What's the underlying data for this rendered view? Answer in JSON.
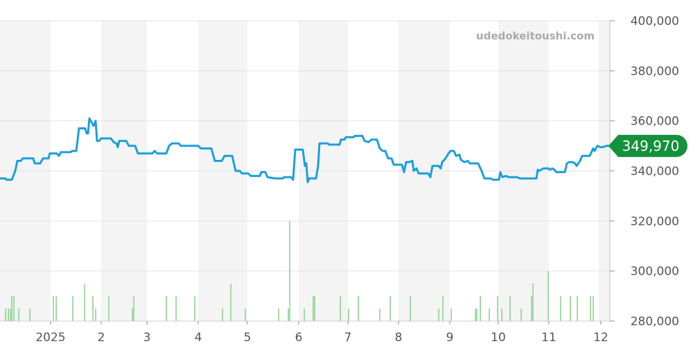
{
  "watermark": "udedokeitoushi.com",
  "colors": {
    "price_line": "#1a9fdb",
    "volume_bar": "#8fd18f",
    "band": "#f4f4f4",
    "grid": "#e2e2e2",
    "badge": "#14913c",
    "axis_text": "#555555"
  },
  "chart_data": {
    "type": "line",
    "ylim": [
      280000,
      400000
    ],
    "y_ticks": [
      "280,000",
      "300,000",
      "320,000",
      "340,000",
      "360,000",
      "380,000",
      "400,000"
    ],
    "x_ticks": [
      "2025",
      "2",
      "3",
      "4",
      "5",
      "6",
      "7",
      "8",
      "9",
      "10",
      "11",
      "12"
    ],
    "last_price_label": "349,970",
    "grid": true,
    "series": [
      {
        "values": [
          [
            0,
            337000
          ],
          [
            8,
            337000
          ],
          [
            9,
            336500
          ],
          [
            17,
            336500
          ],
          [
            22,
            340000
          ],
          [
            25,
            344000
          ],
          [
            30,
            344000
          ],
          [
            33,
            345000
          ],
          [
            48,
            345000
          ],
          [
            50,
            343000
          ],
          [
            58,
            343000
          ],
          [
            62,
            345000
          ],
          [
            70,
            345000
          ],
          [
            72,
            347000
          ],
          [
            82,
            347000
          ],
          [
            85,
            346000
          ],
          [
            88,
            347500
          ],
          [
            102,
            347500
          ],
          [
            104,
            348000
          ],
          [
            110,
            348000
          ],
          [
            114,
            357000
          ],
          [
            123,
            357000
          ],
          [
            125,
            355000
          ],
          [
            127,
            355000
          ],
          [
            129,
            361000
          ],
          [
            133,
            359000
          ],
          [
            135,
            358000
          ],
          [
            138,
            360000
          ],
          [
            140,
            352000
          ],
          [
            143,
            352000
          ],
          [
            146,
            353000
          ],
          [
            160,
            353000
          ],
          [
            164,
            351500
          ],
          [
            168,
            351000
          ],
          [
            170,
            349500
          ],
          [
            172,
            352000
          ],
          [
            182,
            352000
          ],
          [
            186,
            350000
          ],
          [
            195,
            350000
          ],
          [
            199,
            347000
          ],
          [
            220,
            347000
          ],
          [
            223,
            348000
          ],
          [
            227,
            347000
          ],
          [
            240,
            347000
          ],
          [
            244,
            350000
          ],
          [
            248,
            351000
          ],
          [
            258,
            351000
          ],
          [
            261,
            350000
          ],
          [
            286,
            350000
          ],
          [
            290,
            349000
          ],
          [
            305,
            349000
          ],
          [
            310,
            344000
          ],
          [
            320,
            344000
          ],
          [
            324,
            346000
          ],
          [
            335,
            346000
          ],
          [
            340,
            340000
          ],
          [
            346,
            340000
          ],
          [
            349,
            339000
          ],
          [
            358,
            339000
          ],
          [
            362,
            338000
          ],
          [
            375,
            338000
          ],
          [
            377,
            339500
          ],
          [
            383,
            339500
          ],
          [
            386,
            337500
          ],
          [
            397,
            337000
          ],
          [
            408,
            337000
          ],
          [
            410,
            337500
          ],
          [
            420,
            337500
          ],
          [
            423,
            336500
          ],
          [
            426,
            348500
          ],
          [
            437,
            348500
          ],
          [
            440,
            342000
          ],
          [
            442,
            343000
          ],
          [
            444,
            335500
          ],
          [
            446,
            337000
          ],
          [
            456,
            337000
          ],
          [
            459,
            342000
          ],
          [
            461,
            351000
          ],
          [
            473,
            351000
          ],
          [
            475,
            350500
          ],
          [
            490,
            350500
          ],
          [
            492,
            352500
          ],
          [
            497,
            352500
          ],
          [
            499,
            353500
          ],
          [
            510,
            353500
          ],
          [
            512,
            354000
          ],
          [
            523,
            354000
          ],
          [
            526,
            352000
          ],
          [
            532,
            351500
          ],
          [
            536,
            352500
          ],
          [
            544,
            352500
          ],
          [
            548,
            349000
          ],
          [
            552,
            348000
          ],
          [
            556,
            348000
          ],
          [
            560,
            345000
          ],
          [
            565,
            345000
          ],
          [
            568,
            342500
          ],
          [
            580,
            342500
          ],
          [
            583,
            339500
          ],
          [
            586,
            343500
          ],
          [
            590,
            343500
          ],
          [
            595,
            344000
          ],
          [
            597,
            340000
          ],
          [
            601,
            341000
          ],
          [
            604,
            339000
          ],
          [
            618,
            339000
          ],
          [
            621,
            337500
          ],
          [
            624,
            342000
          ],
          [
            633,
            342000
          ],
          [
            636,
            341000
          ],
          [
            638,
            343500
          ],
          [
            643,
            345000
          ],
          [
            646,
            346500
          ],
          [
            650,
            348000
          ],
          [
            655,
            348000
          ],
          [
            658,
            346000
          ],
          [
            663,
            346500
          ],
          [
            665,
            344500
          ],
          [
            670,
            343500
          ],
          [
            675,
            344000
          ],
          [
            678,
            343000
          ],
          [
            690,
            343000
          ],
          [
            695,
            340000
          ],
          [
            699,
            337000
          ],
          [
            708,
            337000
          ],
          [
            711,
            336500
          ],
          [
            720,
            336500
          ],
          [
            722,
            339500
          ],
          [
            725,
            337500
          ],
          [
            730,
            338000
          ],
          [
            734,
            337500
          ],
          [
            740,
            337500
          ],
          [
            746,
            337500
          ],
          [
            750,
            337000
          ],
          [
            760,
            337000
          ],
          [
            770,
            337000
          ],
          [
            774,
            337000
          ],
          [
            776,
            340500
          ],
          [
            778,
            340000
          ],
          [
            784,
            341000
          ],
          [
            791,
            341000
          ],
          [
            794,
            340500
          ],
          [
            797,
            341000
          ],
          [
            800,
            340500
          ],
          [
            803,
            339500
          ],
          [
            815,
            339500
          ],
          [
            818,
            343000
          ],
          [
            821,
            343500
          ],
          [
            826,
            343500
          ],
          [
            830,
            343000
          ],
          [
            832,
            342000
          ],
          [
            837,
            344000
          ],
          [
            840,
            346000
          ],
          [
            851,
            346000
          ],
          [
            856,
            349000
          ],
          [
            858,
            348000
          ],
          [
            862,
            350000
          ],
          [
            866,
            349500
          ],
          [
            870,
            349500
          ],
          [
            875,
            350000
          ],
          [
            880,
            350000
          ]
        ]
      },
      {
        "values": [
          [
            8,
            285000
          ],
          [
            12,
            285000
          ],
          [
            15,
            285000
          ],
          [
            17,
            290000
          ],
          [
            20,
            290000
          ],
          [
            27,
            285000
          ],
          [
            43,
            285000
          ],
          [
            77,
            290000
          ],
          [
            81,
            290000
          ],
          [
            105,
            290000
          ],
          [
            122,
            295000
          ],
          [
            134,
            290000
          ],
          [
            138,
            285000
          ],
          [
            157,
            290000
          ],
          [
            191,
            285000
          ],
          [
            193,
            290000
          ],
          [
            240,
            290000
          ],
          [
            254,
            290000
          ],
          [
            281,
            290000
          ],
          [
            321,
            285000
          ],
          [
            333,
            295000
          ],
          [
            354,
            285000
          ],
          [
            402,
            285000
          ],
          [
            416,
            285000
          ],
          [
            418,
            320000
          ],
          [
            439,
            285000
          ],
          [
            452,
            290000
          ],
          [
            454,
            290000
          ],
          [
            491,
            290000
          ],
          [
            503,
            285000
          ],
          [
            517,
            290000
          ],
          [
            548,
            285000
          ],
          [
            563,
            290000
          ],
          [
            592,
            290000
          ],
          [
            633,
            285000
          ],
          [
            639,
            290000
          ],
          [
            651,
            285000
          ],
          [
            686,
            285000
          ],
          [
            688,
            285000
          ],
          [
            693,
            290000
          ],
          [
            706,
            285000
          ],
          [
            718,
            290000
          ],
          [
            724,
            285000
          ],
          [
            736,
            290000
          ],
          [
            752,
            285000
          ],
          [
            767,
            290000
          ],
          [
            769,
            295000
          ],
          [
            791,
            300000
          ],
          [
            809,
            290000
          ],
          [
            823,
            290000
          ],
          [
            833,
            290000
          ],
          [
            852,
            290000
          ],
          [
            856,
            290000
          ]
        ]
      }
    ]
  }
}
